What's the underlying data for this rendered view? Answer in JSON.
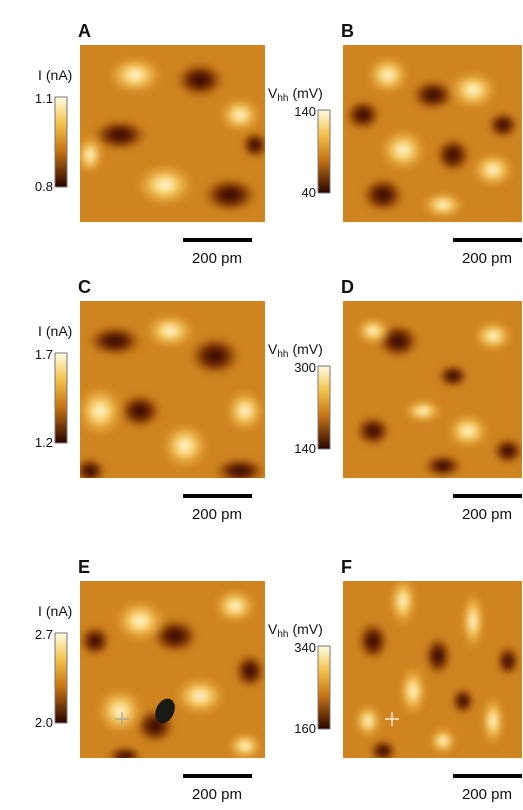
{
  "panels": [
    {
      "label": "A",
      "quantity": "I",
      "unit": "(nA)",
      "max": "1.1",
      "min": "0.8",
      "scale_bar": "200 pm"
    },
    {
      "label": "B",
      "quantity": "V",
      "subscript": "hh",
      "unit": "(mV)",
      "max": "140",
      "min": "40",
      "scale_bar": "200 pm"
    },
    {
      "label": "C",
      "quantity": "I",
      "unit": "(nA)",
      "max": "1.7",
      "min": "1.2",
      "scale_bar": "200 pm"
    },
    {
      "label": "D",
      "quantity": "V",
      "subscript": "hh",
      "unit": "(mV)",
      "max": "300",
      "min": "140",
      "scale_bar": "200 pm"
    },
    {
      "label": "E",
      "quantity": "I",
      "unit": "(nA)",
      "max": "2.7",
      "min": "2.0",
      "scale_bar": "200 pm"
    },
    {
      "label": "F",
      "quantity": "V",
      "subscript": "hh",
      "unit": "(mV)",
      "max": "340",
      "min": "160",
      "scale_bar": "200 pm"
    }
  ]
}
